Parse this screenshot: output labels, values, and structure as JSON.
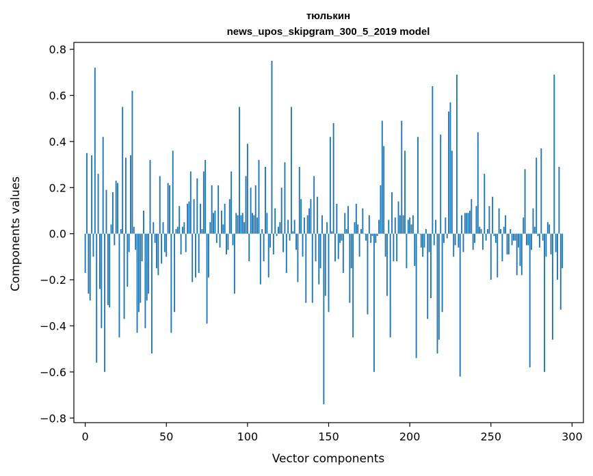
{
  "chart_data": {
    "type": "bar",
    "title_lines": [
      "тюлькин",
      "news_upos_skipgram_300_5_2019 model"
    ],
    "xlabel": "Vector components",
    "ylabel": "Components values",
    "xlim": [
      -7,
      307
    ],
    "ylim": [
      -0.82,
      0.83
    ],
    "xticks": [
      0,
      50,
      100,
      150,
      200,
      250,
      300
    ],
    "yticks": [
      -0.8,
      -0.6,
      -0.4,
      -0.2,
      0.0,
      0.2,
      0.4,
      0.6,
      0.8
    ],
    "ytick_labels": [
      "−0.8",
      "−0.6",
      "−0.4",
      "−0.2",
      "0.0",
      "0.2",
      "0.4",
      "0.6",
      "0.8"
    ],
    "bar_color": "#1f77b4",
    "values": [
      -0.17,
      0.35,
      -0.26,
      -0.29,
      0.34,
      -0.1,
      0.72,
      -0.56,
      0.26,
      -0.24,
      -0.41,
      0.42,
      -0.6,
      0.19,
      -0.31,
      -0.32,
      0.04,
      0.18,
      -0.05,
      0.23,
      0.22,
      -0.45,
      0.02,
      0.55,
      -0.37,
      0.33,
      -0.23,
      -0.08,
      0.34,
      0.62,
      0.03,
      -0.07,
      -0.43,
      -0.34,
      -0.3,
      -0.12,
      0.1,
      -0.41,
      -0.29,
      -0.26,
      0.32,
      -0.52,
      0.05,
      -0.04,
      -0.15,
      -0.18,
      0.25,
      -0.13,
      0.05,
      -0.08,
      -0.1,
      0.22,
      0.21,
      -0.43,
      0.36,
      -0.34,
      0.02,
      0.03,
      0.12,
      -0.09,
      0.03,
      0.05,
      -0.08,
      0.13,
      0.14,
      0.27,
      -0.21,
      0.15,
      -0.19,
      0.24,
      -0.17,
      0.13,
      0.02,
      0.27,
      0.32,
      -0.39,
      -0.19,
      0.05,
      0.21,
      0.09,
      0.1,
      -0.04,
      0.21,
      -0.06,
      0.1,
      0.04,
      0.13,
      -0.09,
      -0.07,
      0.15,
      0.27,
      -0.05,
      -0.26,
      0.09,
      0.08,
      0.55,
      0.08,
      0.09,
      0.05,
      0.25,
      0.39,
      -0.12,
      0.2,
      0.09,
      0.08,
      0.21,
      0.07,
      0.32,
      -0.22,
      0.02,
      -0.12,
      0.29,
      0.09,
      -0.19,
      -0.06,
      0.75,
      -0.09,
      0.11,
      -0.01,
      0.03,
      0.05,
      0.2,
      -0.08,
      0.31,
      -0.17,
      0.06,
      -0.03,
      0.55,
      0.01,
      0.06,
      -0.07,
      -0.21,
      0.29,
      0.15,
      -0.1,
      0.07,
      -0.3,
      0.08,
      0.11,
      0.15,
      -0.3,
      0.25,
      -0.12,
      0.16,
      -0.22,
      -0.15,
      0.08,
      -0.74,
      -0.27,
      0.05,
      -0.34,
      0.42,
      0.01,
      0.48,
      -0.12,
      0.13,
      -0.11,
      -0.04,
      -0.03,
      -0.17,
      0.09,
      0.02,
      0.12,
      -0.3,
      -0.15,
      -0.45,
      0.05,
      0.13,
      0.04,
      -0.1,
      0.02,
      0.11,
      0.0,
      -0.03,
      -0.35,
      0.08,
      -0.04,
      -0.01,
      -0.6,
      -0.04,
      -0.01,
      0.06,
      0.21,
      0.49,
      0.38,
      -0.1,
      -0.27,
      0.06,
      -0.45,
      0.18,
      -0.12,
      0.07,
      -0.12,
      0.14,
      0.08,
      0.49,
      0.08,
      0.36,
      -0.15,
      0.06,
      0.07,
      0.04,
      0.08,
      -0.14,
      -0.54,
      0.42,
      0.0,
      -0.06,
      -0.1,
      -0.06,
      0.02,
      -0.37,
      -0.08,
      -0.28,
      0.64,
      -0.05,
      0.06,
      -0.52,
      -0.46,
      0.43,
      -0.34,
      -0.04,
      0.07,
      -0.02,
      0.53,
      0.57,
      0.36,
      -0.1,
      -0.05,
      0.69,
      -0.06,
      -0.62,
      0.08,
      -0.08,
      0.09,
      0.09,
      0.09,
      0.1,
      0.15,
      -0.07,
      -0.04,
      0.12,
      0.44,
      0.03,
      0.02,
      -0.07,
      0.26,
      -0.03,
      0.02,
      0.12,
      -0.2,
      0.16,
      -0.01,
      -0.04,
      -0.19,
      0.11,
      0.02,
      -0.12,
      0.03,
      0.08,
      -0.09,
      -0.09,
      0.02,
      -0.05,
      -0.03,
      -0.03,
      -0.18,
      -0.06,
      -0.14,
      -0.18,
      0.07,
      0.28,
      -0.05,
      -0.05,
      -0.58,
      -0.07,
      0.11,
      0.03,
      0.33,
      -0.01,
      -0.06,
      0.37,
      -0.03,
      -0.6,
      -0.1,
      0.05,
      0.04,
      -0.09,
      -0.46,
      0.69,
      -0.08,
      -0.2,
      0.29,
      -0.33,
      -0.15
    ]
  }
}
